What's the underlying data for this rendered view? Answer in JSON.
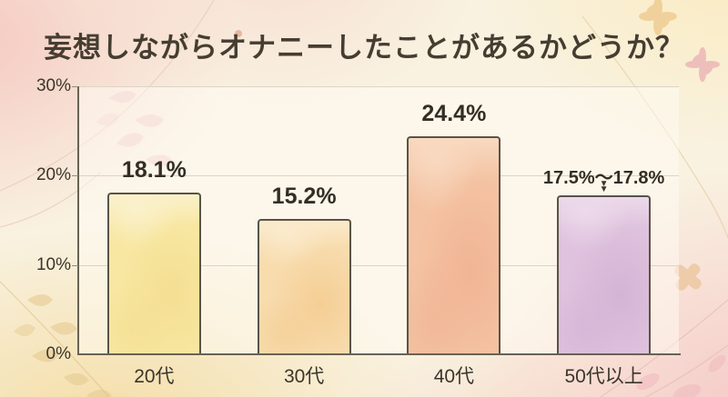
{
  "title": "妄想しながらオナニーしたことがあるかどうか？",
  "chart_data": {
    "type": "bar",
    "title": "妄想しながらオナニーしたことがあるかどうか？",
    "categories": [
      "20代",
      "30代",
      "40代",
      "50代以上"
    ],
    "values": [
      18.1,
      15.2,
      24.4,
      17.8
    ],
    "value_labels": [
      "18.1%",
      "15.2%",
      "24.4%",
      "17.5%〜17.8%"
    ],
    "annotation": {
      "bar_index": 3,
      "arrow_glyph": "▼",
      "note": "double down arrow between range label and bar top"
    },
    "ylim": [
      0,
      30
    ],
    "yticks": [
      {
        "label": "30%",
        "value": 30
      },
      {
        "label": "20%",
        "value": 20
      },
      {
        "label": "10%",
        "value": 10
      },
      {
        "label": "0%",
        "value": 0
      }
    ],
    "grid": true,
    "legend": false,
    "xlabel": "",
    "ylabel": "",
    "bar_styles": [
      {
        "name": "yellow",
        "base": "#f8e7a2",
        "patch": "#f1d987",
        "light": "#faf1cb"
      },
      {
        "name": "peach",
        "base": "#f8dcae",
        "patch": "#f2c584",
        "light": "#fbeacc"
      },
      {
        "name": "salmon",
        "base": "#f4c3a3",
        "patch": "#eeab89",
        "light": "#f8d9c0"
      },
      {
        "name": "lavender",
        "base": "#dfc2de",
        "patch": "#cdabce",
        "light": "#ecd9ea"
      }
    ],
    "colors": {
      "axis": "#6a6254",
      "grid": "#dbd4c5",
      "bar_border": "#5a5347",
      "title_text": "#463d31",
      "label_text": "#332e25",
      "tick_text": "#3b352b",
      "plot_background": "rgba(255,252,244,0.5)"
    }
  }
}
